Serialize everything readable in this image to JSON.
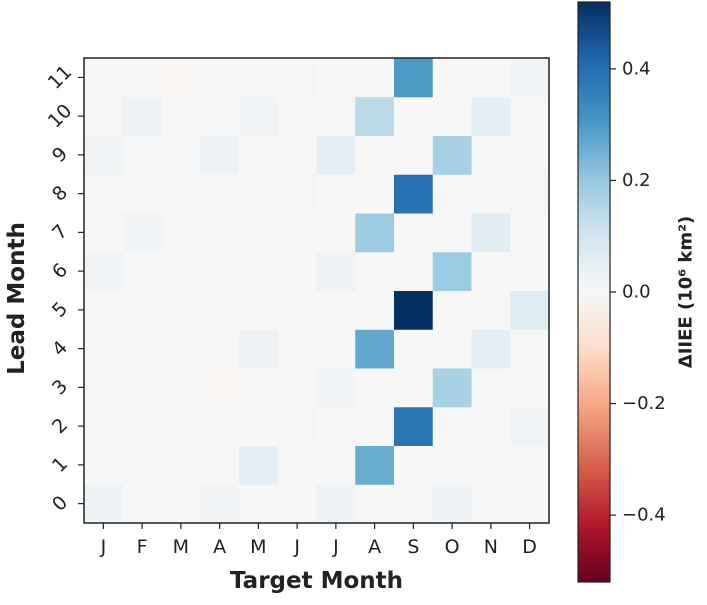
{
  "chart_data": {
    "type": "heatmap",
    "xlabel": "Target Month",
    "ylabel": "Lead Month",
    "x_categories": [
      "J",
      "F",
      "M",
      "A",
      "M",
      "J",
      "J",
      "A",
      "S",
      "O",
      "N",
      "D"
    ],
    "y_categories": [
      "0",
      "1",
      "2",
      "3",
      "4",
      "5",
      "6",
      "7",
      "8",
      "9",
      "10",
      "11"
    ],
    "values": [
      [
        0.03,
        0.0,
        0.0,
        0.02,
        0.0,
        0.0,
        0.03,
        0.0,
        0.0,
        0.03,
        0.0,
        0.0
      ],
      [
        0.0,
        0.0,
        0.0,
        0.0,
        0.05,
        0.0,
        0.0,
        0.26,
        0.0,
        0.0,
        0.01,
        0.0
      ],
      [
        0.0,
        0.0,
        0.0,
        0.0,
        0.0,
        0.01,
        0.0,
        0.0,
        0.38,
        0.0,
        0.0,
        0.02
      ],
      [
        0.01,
        0.0,
        0.0,
        -0.01,
        0.0,
        0.0,
        0.02,
        0.0,
        0.0,
        0.17,
        0.0,
        0.0
      ],
      [
        0.0,
        0.0,
        0.0,
        0.0,
        0.03,
        0.0,
        0.0,
        0.27,
        0.0,
        0.0,
        0.05,
        0.0
      ],
      [
        0.0,
        0.0,
        0.0,
        0.0,
        0.0,
        0.0,
        0.0,
        0.0,
        0.52,
        0.0,
        0.0,
        0.07
      ],
      [
        0.02,
        0.0,
        0.0,
        0.0,
        0.0,
        0.0,
        0.03,
        0.0,
        0.0,
        0.19,
        0.0,
        0.0
      ],
      [
        0.0,
        0.02,
        0.0,
        0.0,
        0.0,
        0.0,
        0.0,
        0.19,
        0.0,
        0.0,
        0.06,
        0.0
      ],
      [
        0.0,
        0.0,
        0.01,
        0.0,
        0.0,
        0.01,
        0.0,
        0.0,
        0.39,
        0.0,
        0.0,
        0.01
      ],
      [
        0.02,
        0.0,
        0.0,
        0.03,
        0.0,
        0.0,
        0.05,
        0.0,
        0.0,
        0.17,
        0.0,
        0.0
      ],
      [
        0.0,
        0.03,
        0.0,
        0.0,
        0.02,
        0.0,
        0.0,
        0.14,
        0.0,
        0.0,
        0.05,
        0.0
      ],
      [
        0.0,
        0.0,
        -0.01,
        0.0,
        0.0,
        0.01,
        0.0,
        0.0,
        0.3,
        0.0,
        0.0,
        0.02
      ]
    ],
    "colorbar": {
      "label": "ΔIIEE (10⁶ km²)",
      "range": [
        -0.52,
        0.52
      ],
      "ticks": [
        -0.4,
        -0.2,
        0.0,
        0.2,
        0.4
      ],
      "tick_labels": [
        "−0.4",
        "−0.2",
        "0.0",
        "0.2",
        "0.4"
      ],
      "colormap": "RdBu_r"
    },
    "grid": false
  }
}
